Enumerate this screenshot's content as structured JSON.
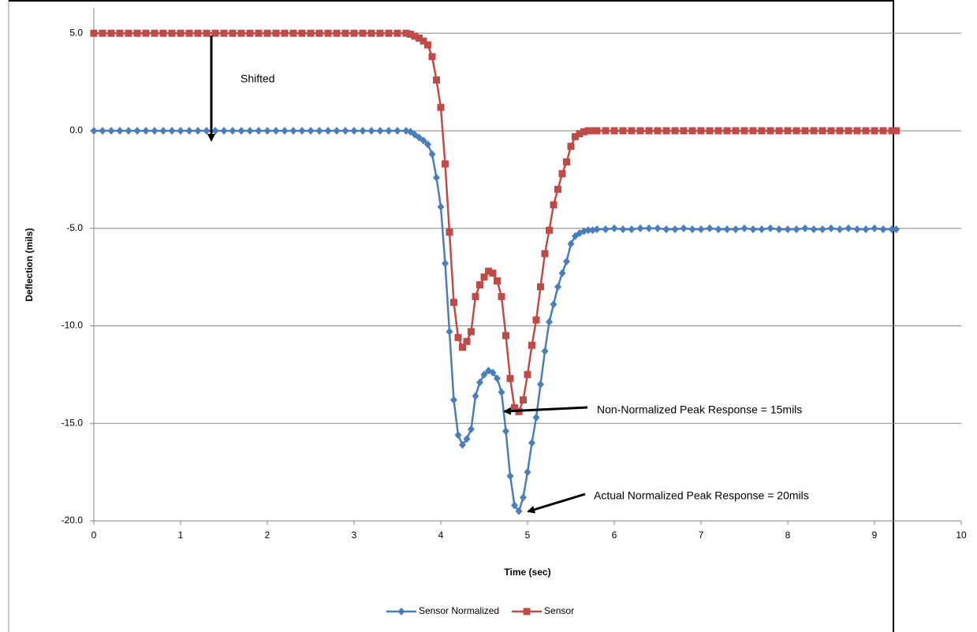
{
  "chart_data": {
    "type": "line",
    "x": [
      0,
      0.1,
      0.2,
      0.3,
      0.4,
      0.5,
      0.6,
      0.7,
      0.8,
      0.9,
      1.0,
      1.1,
      1.2,
      1.3,
      1.4,
      1.5,
      1.6,
      1.7,
      1.8,
      1.9,
      2.0,
      2.1,
      2.2,
      2.3,
      2.4,
      2.5,
      2.6,
      2.7,
      2.8,
      2.9,
      3.0,
      3.1,
      3.2,
      3.3,
      3.4,
      3.5,
      3.6,
      3.65,
      3.7,
      3.75,
      3.8,
      3.85,
      3.9,
      3.95,
      4.0,
      4.05,
      4.1,
      4.15,
      4.2,
      4.25,
      4.3,
      4.35,
      4.4,
      4.45,
      4.5,
      4.55,
      4.6,
      4.65,
      4.7,
      4.75,
      4.8,
      4.85,
      4.9,
      4.95,
      5.0,
      5.05,
      5.1,
      5.15,
      5.2,
      5.25,
      5.3,
      5.35,
      5.4,
      5.45,
      5.5,
      5.55,
      5.6,
      5.65,
      5.7,
      5.75,
      5.8,
      5.9,
      6.0,
      6.1,
      6.2,
      6.3,
      6.4,
      6.5,
      6.6,
      6.7,
      6.8,
      6.9,
      7.0,
      7.1,
      7.2,
      7.3,
      7.4,
      7.5,
      7.6,
      7.7,
      7.8,
      7.9,
      8.0,
      8.1,
      8.2,
      8.3,
      8.4,
      8.5,
      8.6,
      8.7,
      8.8,
      8.9,
      9.0,
      9.1,
      9.2,
      9.25
    ],
    "series": [
      {
        "name": "Sensor Normalized",
        "color": "#4a7ebb",
        "marker": "diamond",
        "values": [
          0,
          0,
          0,
          0,
          0,
          0,
          0,
          0,
          0,
          0,
          0,
          0,
          0,
          0,
          0,
          0,
          0,
          0,
          0,
          0,
          0,
          0,
          0,
          0,
          0,
          0,
          0,
          0,
          0,
          0,
          0,
          0,
          0,
          0,
          0,
          0,
          0,
          -0.05,
          -0.2,
          -0.35,
          -0.5,
          -0.7,
          -1.2,
          -2.4,
          -3.9,
          -6.8,
          -10.3,
          -13.8,
          -15.6,
          -16.1,
          -15.8,
          -15.3,
          -13.6,
          -12.9,
          -12.5,
          -12.3,
          -12.4,
          -12.7,
          -13.4,
          -15.4,
          -17.7,
          -19.2,
          -19.5,
          -18.8,
          -17.5,
          -16.0,
          -14.7,
          -13.0,
          -11.3,
          -9.8,
          -8.9,
          -8.0,
          -7.3,
          -6.7,
          -5.8,
          -5.4,
          -5.25,
          -5.15,
          -5.1,
          -5.1,
          -5.05,
          -5.05,
          -5.0,
          -5.05,
          -5.05,
          -5.0,
          -5.0,
          -5.0,
          -5.05,
          -5.05,
          -5.0,
          -5.05,
          -5.05,
          -5.0,
          -5.05,
          -5.05,
          -5.05,
          -5.0,
          -5.05,
          -5.05,
          -5.0,
          -5.05,
          -5.05,
          -5.05,
          -5.0,
          -5.05,
          -5.05,
          -5.0,
          -5.05,
          -5.0,
          -5.05,
          -5.05,
          -5.0,
          -5.05,
          -5.05,
          -5.05
        ]
      },
      {
        "name": "Sensor",
        "color": "#be4b48",
        "marker": "square",
        "values": [
          5.0,
          5.0,
          5.0,
          5.0,
          5.0,
          5.0,
          5.0,
          5.0,
          5.0,
          5.0,
          5.0,
          5.0,
          5.0,
          5.0,
          5.0,
          5.0,
          5.0,
          5.0,
          5.0,
          5.0,
          5.0,
          5.0,
          5.0,
          5.0,
          5.0,
          5.0,
          5.0,
          5.0,
          5.0,
          5.0,
          5.0,
          5.0,
          5.0,
          5.0,
          5.0,
          5.0,
          5.0,
          4.95,
          4.85,
          4.75,
          4.6,
          4.4,
          3.8,
          2.6,
          1.2,
          -1.7,
          -5.2,
          -8.8,
          -10.6,
          -11.1,
          -10.8,
          -10.3,
          -8.5,
          -7.9,
          -7.5,
          -7.2,
          -7.3,
          -7.7,
          -8.5,
          -10.5,
          -12.7,
          -14.2,
          -14.4,
          -13.8,
          -12.5,
          -11.0,
          -9.7,
          -8.0,
          -6.3,
          -5.1,
          -3.8,
          -3.0,
          -2.2,
          -1.6,
          -0.8,
          -0.3,
          -0.15,
          -0.05,
          0,
          0,
          0,
          0,
          0,
          0,
          0,
          0,
          0,
          0,
          0,
          0,
          0,
          0,
          0,
          0,
          0,
          0,
          0,
          0,
          0,
          0,
          0,
          0,
          0,
          0,
          0,
          0,
          0,
          0,
          0,
          0,
          0,
          0,
          0,
          0,
          0,
          0
        ]
      }
    ],
    "xlabel": "Time (sec)",
    "ylabel": "Deflection (mils)",
    "xlim": [
      0,
      10
    ],
    "xticks": [
      0,
      1,
      2,
      3,
      4,
      5,
      6,
      7,
      8,
      9,
      10
    ],
    "ylim": [
      -20,
      6.3
    ],
    "yticks": [
      {
        "value": 5,
        "label": "5.0"
      },
      {
        "value": 0,
        "label": "0.0"
      },
      {
        "value": -5,
        "label": "-5.0"
      },
      {
        "value": -10,
        "label": "-10.0"
      },
      {
        "value": -15,
        "label": "-15.0"
      },
      {
        "value": -20,
        "label": "-20.0"
      }
    ],
    "grid": true,
    "legend": "bottom",
    "annotations": [
      "Shifted",
      "Non-Normalized Peak Response = 15mils",
      "Actual Normalized Peak Response = 20mils"
    ]
  }
}
